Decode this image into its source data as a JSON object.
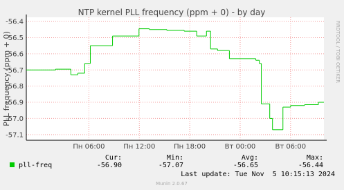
{
  "chart_data": {
    "type": "line",
    "title": "NTP kernel PLL frequency (ppm + 0) - by day",
    "y_label": "PLL frequency (ppm + 0)",
    "side_text": "RRDTOOL / TOBI OETIKER",
    "x": [
      -1.45,
      2.03,
      3.85,
      4.68,
      5.5,
      6.17,
      8.81,
      11.96,
      13.2,
      15.27,
      17.34,
      18.83,
      19.99,
      20.48,
      21.31,
      22.72,
      25.86,
      26.28,
      26.52,
      27.52,
      27.85,
      29.09,
      30.0,
      31.66,
      33.31
    ],
    "series": [
      {
        "name": "pll-freq",
        "color": "#00cc00",
        "values": [
          -56.7,
          -56.695,
          -56.73,
          -56.72,
          -56.66,
          -56.55,
          -56.49,
          -56.445,
          -56.45,
          -56.455,
          -56.46,
          -56.49,
          -56.46,
          -56.57,
          -56.58,
          -56.63,
          -56.64,
          -56.66,
          -56.91,
          -57.0,
          -57.07,
          -56.93,
          -56.92,
          -56.915,
          -56.9
        ]
      }
    ],
    "xlim": [
      -1.45,
      33.97
    ],
    "xticks": [
      {
        "value": 6,
        "label": "Пн 06:00"
      },
      {
        "value": 12,
        "label": "Пн 12:00"
      },
      {
        "value": 18,
        "label": "Пн 18:00"
      },
      {
        "value": 24,
        "label": "Вт 00:00"
      },
      {
        "value": 30,
        "label": "Вт 06:00"
      }
    ],
    "ylim": [
      -57.135,
      -56.374
    ],
    "yticks": [
      -56.4,
      -56.5,
      -56.6,
      -56.7,
      -56.8,
      -56.9,
      {
        "value": -57,
        "label": "-57.0"
      },
      -57.1
    ],
    "grid": true,
    "legend": {
      "headers": [
        "Cur:",
        "Min:",
        "Avg:",
        "Max:"
      ],
      "stats": [
        "-56.90",
        "-57.07",
        "-56.65",
        "-56.44"
      ]
    },
    "footer": "Last update: Tue Nov  5 10:15:13 2024",
    "credit": "Munin 2.0.67"
  }
}
